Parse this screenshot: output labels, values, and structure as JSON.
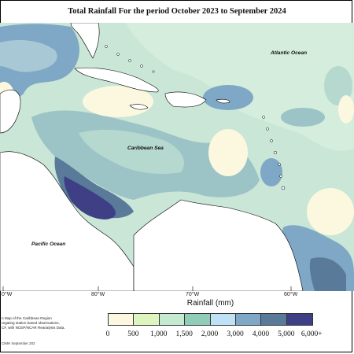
{
  "title": "Total Rainfall For the period October 2023 to September 2024",
  "map": {
    "labels": {
      "atlantic": "Atlantic Ocean",
      "caribbean": "Caribbean Sea",
      "pacific": "Pacific Ocean"
    },
    "longitudes": [
      "0°W",
      "80°W",
      "70°W",
      "60°W"
    ]
  },
  "legend": {
    "title": "Rainfall (mm)",
    "colors": [
      "#fbf8df",
      "#dff5c0",
      "#c6ead0",
      "#8fcdb8",
      "#bfe0f5",
      "#7ea8c6",
      "#5a7a9a",
      "#3f3f86"
    ],
    "ticks": [
      "0",
      "500",
      "1,000",
      "1,500",
      "2,000",
      "3,000",
      "4,000",
      "5,000",
      "6,000+"
    ]
  },
  "source_lines": [
    "n Map of the Caribbean Region",
    "regating station based observations,",
    "CF, with NCEP/NCAR Reanalysis Data."
  ],
  "credit": "CIMH September 202"
}
